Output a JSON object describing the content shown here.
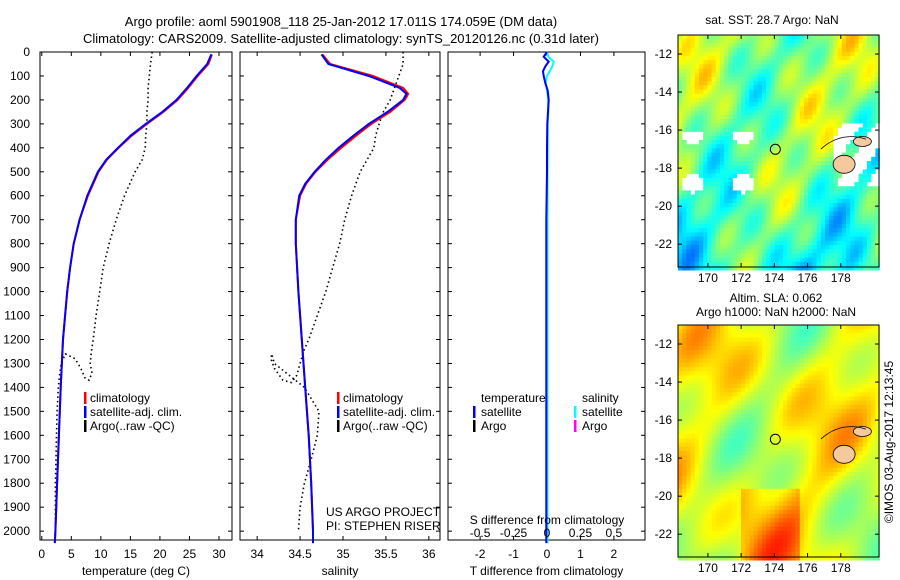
{
  "title": {
    "line1": "Argo profile: aoml 5901908_118 25-Jan-2012 17.011S 174.059E (DM data)",
    "line2": "Climatology: CARS2009. Satellite-adjusted climatology: synTS_20120126.nc (0.31d later)"
  },
  "colors": {
    "climatology": "#ff0000",
    "satellite": "#0000ff",
    "argo": "#000000",
    "sal_satellite": "#00ffff",
    "sal_argo": "#ff00ff",
    "land": "#f6c89e"
  },
  "chart_data": [
    {
      "type": "line",
      "name": "temperature",
      "xlabel": "temperature (deg C)",
      "ylabel": "depth",
      "xlim": [
        -0.3,
        32.2
      ],
      "ylim": [
        2037,
        0
      ],
      "xticks": [
        0,
        5,
        10,
        15,
        20,
        25,
        30
      ],
      "yticks": [
        0,
        100,
        200,
        300,
        400,
        500,
        600,
        700,
        800,
        900,
        1000,
        1100,
        1200,
        1300,
        1400,
        1500,
        1600,
        1700,
        1800,
        1900,
        2000
      ],
      "legend": [
        "climatology",
        "satellite-adj. clim.",
        "Argo(..raw -QC)"
      ],
      "series": [
        {
          "name": "climatology",
          "depth": [
            10,
            50,
            100,
            150,
            200,
            250,
            300,
            350,
            400,
            450,
            500,
            600,
            700,
            800,
            900,
            1000,
            1200,
            1400,
            1600,
            1800,
            2000,
            2050
          ],
          "values": [
            28.8,
            28.2,
            26.4,
            24.8,
            23.0,
            20.6,
            17.8,
            15.2,
            13.0,
            11.0,
            9.6,
            7.8,
            6.4,
            5.4,
            4.8,
            4.3,
            3.6,
            3.2,
            2.9,
            2.6,
            2.3,
            2.2
          ]
        },
        {
          "name": "satellite-adj. clim.",
          "depth": [
            10,
            50,
            100,
            150,
            200,
            250,
            300,
            350,
            400,
            450,
            500,
            600,
            700,
            800,
            900,
            1000,
            1200,
            1400,
            1600,
            1800,
            2000,
            2050
          ],
          "values": [
            28.7,
            28.0,
            26.2,
            24.6,
            22.8,
            20.4,
            17.6,
            15.0,
            12.9,
            10.9,
            9.5,
            7.7,
            6.4,
            5.4,
            4.8,
            4.3,
            3.6,
            3.2,
            2.9,
            2.6,
            2.3,
            2.2
          ]
        },
        {
          "name": "Argo(..raw -QC)",
          "depth": [
            0,
            50,
            100,
            150,
            200,
            250,
            300,
            350,
            400,
            450,
            500,
            600,
            700,
            800,
            900,
            1000,
            1100,
            1200,
            1250,
            1300,
            1340,
            1370,
            1360,
            1320,
            1280,
            1260,
            1300,
            1350,
            1400,
            1500,
            1600,
            1700,
            1800,
            1900,
            2000
          ],
          "values": [
            18.7,
            18.4,
            18.2,
            18.0,
            18.0,
            17.8,
            17.8,
            17.6,
            17.5,
            17.0,
            15.8,
            14.0,
            12.6,
            11.4,
            10.4,
            9.8,
            9.2,
            8.7,
            8.4,
            8.2,
            8.5,
            8.0,
            7.3,
            6.6,
            5.6,
            4.0,
            3.3,
            3.0,
            2.8,
            2.6,
            2.5,
            2.4,
            2.3,
            2.3,
            2.3
          ]
        }
      ]
    },
    {
      "type": "line",
      "name": "salinity",
      "xlabel": "salinity",
      "xlim": [
        33.8,
        36.13
      ],
      "ylim": [
        2037,
        0
      ],
      "xticks": [
        34,
        34.5,
        35,
        35.5,
        36
      ],
      "legend": [
        "climatology",
        "satellite-adj. clim.",
        "Argo(..raw -QC)"
      ],
      "series": [
        {
          "name": "climatology",
          "depth": [
            10,
            50,
            100,
            150,
            175,
            200,
            250,
            300,
            350,
            400,
            450,
            500,
            550,
            600,
            700,
            800,
            1000,
            1200,
            1400,
            1600,
            1800,
            2000,
            2050
          ],
          "values": [
            34.76,
            34.85,
            35.35,
            35.7,
            35.76,
            35.72,
            35.55,
            35.33,
            35.15,
            34.98,
            34.82,
            34.68,
            34.57,
            34.5,
            34.45,
            34.45,
            34.48,
            34.52,
            34.56,
            34.6,
            34.63,
            34.65,
            34.65
          ]
        },
        {
          "name": "satellite-adj. clim.",
          "depth": [
            10,
            50,
            100,
            150,
            175,
            200,
            250,
            300,
            350,
            400,
            450,
            500,
            550,
            600,
            700,
            800,
            1000,
            1200,
            1400,
            1600,
            1800,
            2000,
            2050
          ],
          "values": [
            34.75,
            34.83,
            35.3,
            35.66,
            35.74,
            35.7,
            35.52,
            35.3,
            35.12,
            34.95,
            34.8,
            34.67,
            34.56,
            34.49,
            34.45,
            34.45,
            34.48,
            34.52,
            34.56,
            34.6,
            34.63,
            34.65,
            34.65
          ]
        },
        {
          "name": "Argo(..raw -QC)",
          "depth": [
            0,
            50,
            100,
            150,
            200,
            250,
            300,
            350,
            400,
            500,
            600,
            700,
            800,
            900,
            1000,
            1100,
            1200,
            1250,
            1300,
            1350,
            1380,
            1370,
            1320,
            1280,
            1260,
            1300,
            1400,
            1500,
            1600,
            1700,
            1800,
            1900,
            2000
          ],
          "values": [
            35.7,
            35.7,
            35.65,
            35.6,
            35.55,
            35.47,
            35.42,
            35.38,
            35.36,
            35.2,
            35.1,
            35.02,
            34.96,
            34.88,
            34.8,
            34.7,
            34.6,
            34.54,
            34.5,
            34.46,
            34.4,
            34.3,
            34.2,
            34.16,
            34.17,
            34.2,
            34.55,
            34.72,
            34.7,
            34.63,
            34.55,
            34.5,
            34.48
          ]
        }
      ]
    },
    {
      "type": "line",
      "name": "difference",
      "xlabel": "T difference from climatology",
      "x2label": "S difference from climatology",
      "xlim": [
        -2.96,
        2.93
      ],
      "xticks": [
        -2,
        -1,
        0,
        1,
        2
      ],
      "s_ticks": [
        "-0.5",
        "-0.25",
        "0",
        "0.25",
        "0.5"
      ],
      "s_tick_values": [
        -0.5,
        -0.25,
        0,
        0.25,
        0.5
      ],
      "legend_temperature_title": "temperature",
      "legend_salinity_title": "salinity",
      "legend_temperature": [
        "satellite",
        "Argo"
      ],
      "legend_salinity": [
        "satellite",
        "Argo"
      ],
      "series": [
        {
          "name": "T satellite",
          "depth": [
            0,
            20,
            40,
            60,
            80,
            100,
            130,
            160,
            200,
            250,
            300,
            400,
            500,
            700,
            1000,
            1500,
            2000,
            2050
          ],
          "values": [
            0,
            -0.1,
            0.05,
            -0.05,
            -0.12,
            -0.1,
            -0.05,
            0.02,
            0.05,
            0.03,
            0.01,
            0,
            0,
            -0.02,
            -0.02,
            -0.02,
            -0.02,
            -0.02
          ]
        },
        {
          "name": "S satellite",
          "depth": [
            0,
            20,
            40,
            60,
            80,
            100,
            130,
            160,
            200,
            250,
            300,
            400,
            500,
            700,
            1000,
            1500,
            2000,
            2050
          ],
          "values": [
            0,
            0.01,
            0.05,
            0.04,
            0.02,
            0.0,
            -0.01,
            0.0,
            0.01,
            0.01,
            0.005,
            0.005,
            0.004,
            0.004,
            0.004,
            0.004,
            0.004,
            0.004
          ]
        }
      ]
    },
    {
      "type": "heatmap",
      "name": "sst-map",
      "title": "sat. SST: 28.7 Argo: NaN",
      "xlim": [
        168.2,
        180.3
      ],
      "ylim": [
        -23.2,
        -11
      ],
      "xticks": [
        170,
        172,
        174,
        176,
        178
      ],
      "yticks": [
        -12,
        -14,
        -16,
        -18,
        -20,
        -22
      ],
      "marker": {
        "lon": 174.059,
        "lat": -17.011
      }
    },
    {
      "type": "heatmap",
      "name": "sla-map",
      "title1": "Altim. SLA: 0.062",
      "title2": "Argo h1000: NaN h2000: NaN",
      "xlim": [
        168.2,
        180.3
      ],
      "ylim": [
        -23.2,
        -11
      ],
      "xticks": [
        170,
        172,
        174,
        176,
        178
      ],
      "yticks": [
        -12,
        -14,
        -16,
        -18,
        -20,
        -22
      ],
      "marker": {
        "lon": 174.059,
        "lat": -17.011
      }
    }
  ],
  "credits": {
    "project": "US ARGO PROJECT",
    "pi": "PI: STEPHEN RISER"
  },
  "stamp": "©IMOS 03-Aug-2017 12:13:45"
}
